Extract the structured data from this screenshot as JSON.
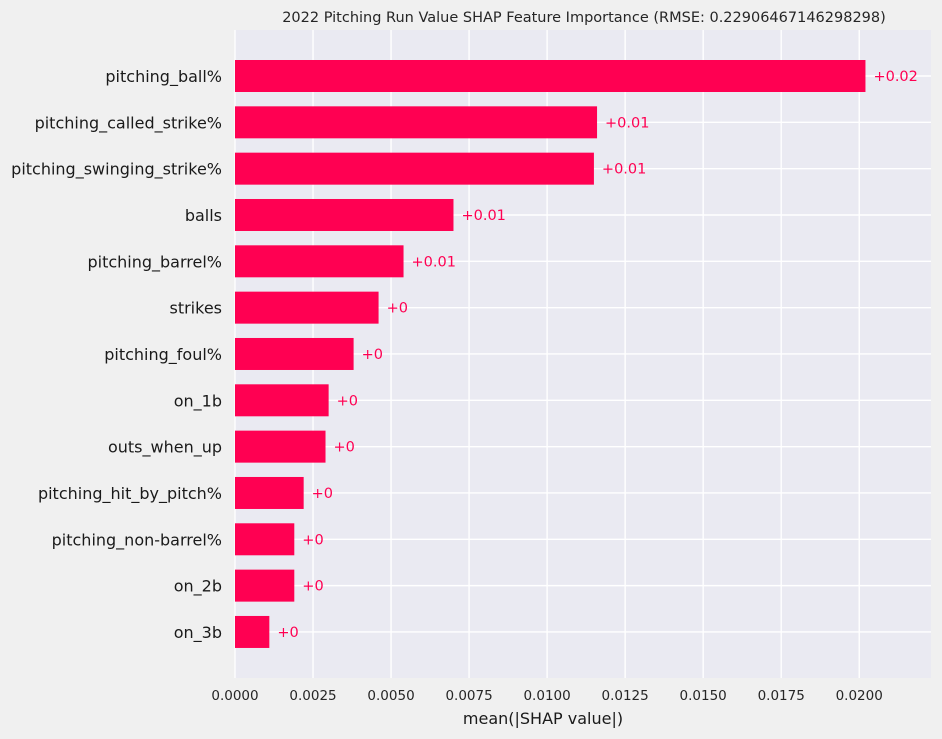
{
  "chart_data": {
    "type": "bar",
    "orientation": "horizontal",
    "title": "2022 Pitching Run Value SHAP Feature Importance (RMSE: 0.22906467146298298)",
    "xlabel": "mean(|SHAP value|)",
    "ylabel": "",
    "xlim": [
      0,
      0.0223
    ],
    "xticks": [
      "0.0000",
      "0.0025",
      "0.0050",
      "0.0075",
      "0.0100",
      "0.0125",
      "0.0150",
      "0.0175",
      "0.0200"
    ],
    "grid": true,
    "colors": {
      "bar": "#ff0052",
      "label": "#ff0052",
      "plot_bg": "#eaeaf2",
      "grid": "#ffffff"
    },
    "categories": [
      "pitching_ball%",
      "pitching_called_strike%",
      "pitching_swinging_strike%",
      "balls",
      "pitching_barrel%",
      "strikes",
      "pitching_foul%",
      "on_1b",
      "outs_when_up",
      "pitching_hit_by_pitch%",
      "pitching_non-barrel%",
      "on_2b",
      "on_3b"
    ],
    "values": [
      0.0202,
      0.0116,
      0.0115,
      0.007,
      0.0054,
      0.0046,
      0.0038,
      0.003,
      0.0029,
      0.0022,
      0.0019,
      0.0019,
      0.0011
    ],
    "data_labels": [
      "+0.02",
      "+0.01",
      "+0.01",
      "+0.01",
      "+0.01",
      "+0",
      "+0",
      "+0",
      "+0",
      "+0",
      "+0",
      "+0",
      "+0"
    ]
  }
}
